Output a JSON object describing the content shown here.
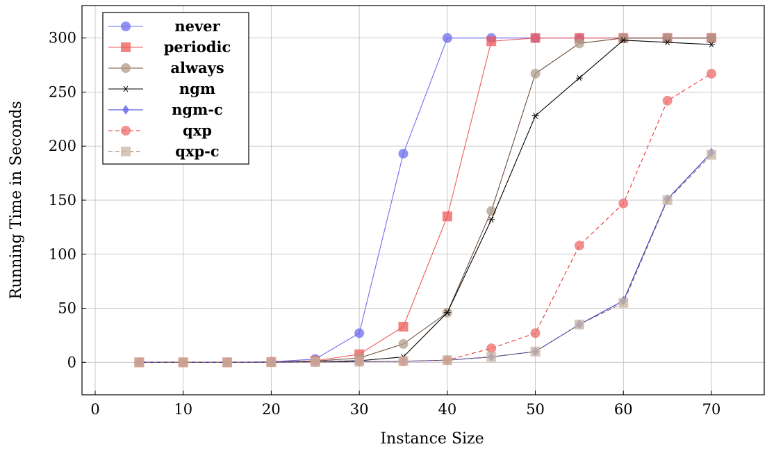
{
  "chart_data": {
    "type": "line",
    "title": "",
    "xlabel": "Instance Size",
    "ylabel": "Running Time in Seconds",
    "xlim": [
      -1.5,
      76
    ],
    "ylim": [
      -30,
      330
    ],
    "xticks": [
      0,
      10,
      20,
      30,
      40,
      50,
      60,
      70
    ],
    "yticks": [
      0,
      50,
      100,
      150,
      200,
      250,
      300
    ],
    "grid": true,
    "legend_position": "top-left",
    "x": [
      5,
      10,
      15,
      20,
      25,
      30,
      35,
      40,
      45,
      50,
      55,
      60,
      65,
      70
    ],
    "series": [
      {
        "name": "never",
        "color": "#6c6cf0",
        "marker": "circle",
        "dash": false,
        "values": [
          0,
          0,
          0,
          0.5,
          3,
          27,
          193,
          300,
          300,
          300,
          300,
          300,
          300,
          300
        ]
      },
      {
        "name": "periodic",
        "color": "#ee5a5a",
        "marker": "square",
        "dash": false,
        "values": [
          0,
          0,
          0,
          0.3,
          1.5,
          7.5,
          33,
          135,
          297,
          300,
          300,
          300,
          300,
          300
        ]
      },
      {
        "name": "always",
        "color": "#b09c88",
        "marker": "circle",
        "line": "#6e4f3a",
        "dash": false,
        "values": [
          0,
          0,
          0,
          0.3,
          1.2,
          4,
          17,
          46,
          140,
          267,
          295,
          300,
          300,
          300
        ]
      },
      {
        "name": "ngm",
        "color": "#000000",
        "marker": "star",
        "dash": false,
        "values": [
          0,
          0,
          0,
          0.2,
          0.5,
          1.5,
          5,
          46,
          132,
          228,
          263,
          298,
          296,
          294
        ]
      },
      {
        "name": "ngm-c",
        "color": "#6c6cf0",
        "marker": "diamond",
        "line": "#3030d0",
        "dash": false,
        "values": [
          0,
          0,
          0,
          0.1,
          0.3,
          0.6,
          1,
          2,
          5,
          10,
          35,
          57,
          151,
          194
        ]
      },
      {
        "name": "qxp",
        "color": "#ee6a6a",
        "marker": "circle",
        "line": "#ee3030",
        "dash": true,
        "values": [
          0,
          0,
          0,
          0.1,
          0.3,
          0.6,
          1,
          2,
          13,
          27,
          108,
          147,
          242,
          267
        ]
      },
      {
        "name": "qxp-c",
        "color": "#c8b4a0",
        "marker": "square",
        "line": "#8a6e55",
        "dash": true,
        "values": [
          0,
          0,
          0,
          0.1,
          0.3,
          0.6,
          1,
          2,
          5,
          10,
          35,
          55,
          150,
          192
        ]
      }
    ]
  }
}
